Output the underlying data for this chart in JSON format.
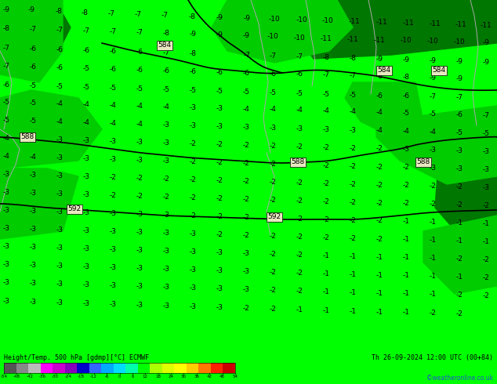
{
  "title_left": "Height/Temp. 500 hPa [gdmp][°C] ECMWF",
  "title_right": "Th 26-09-2024 12:00 UTC (00+84)",
  "credit": "©weatheronline.co.uk",
  "colorbar_ticks": [
    "-54",
    "-48",
    "-42",
    "-36",
    "-30",
    "-24",
    "-18",
    "-12",
    "-6",
    "0",
    "6",
    "12",
    "18",
    "24",
    "30",
    "36",
    "42",
    "48",
    "54"
  ],
  "colorbar_colors": [
    "#555555",
    "#888888",
    "#bbbbbb",
    "#ff00ff",
    "#cc00cc",
    "#8800bb",
    "#0000cc",
    "#3366ff",
    "#00aaff",
    "#00ddff",
    "#00ffaa",
    "#00ff00",
    "#aaff00",
    "#ddff00",
    "#ffff00",
    "#ffcc00",
    "#ff7700",
    "#ff2200",
    "#cc0000"
  ],
  "bg_color": "#00ff00",
  "darker_green": "#00cc00",
  "darkest_green": "#007700",
  "medium_green": "#00dd00",
  "contour_color": "#000000",
  "label_color": "#000000",
  "bottom_bg": "#00cc00",
  "fig_width": 6.34,
  "fig_height": 4.9,
  "dpi": 100
}
